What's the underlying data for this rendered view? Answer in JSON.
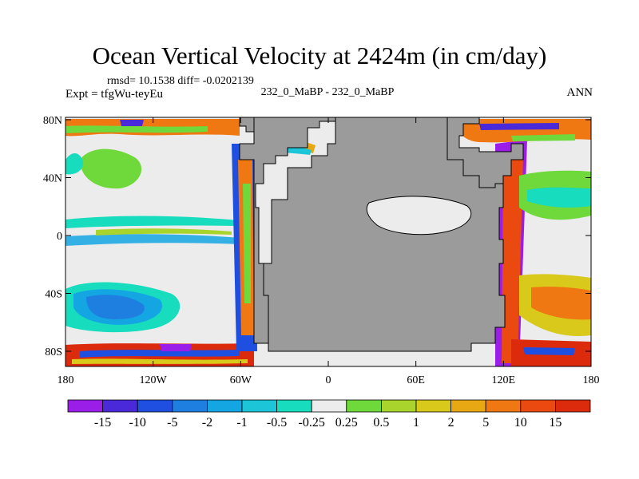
{
  "title": "Ocean Vertical Velocity at 2424m (in cm/day)",
  "stats": "rmsd= 10.1538  diff= -0.0202139",
  "center_label": "232_0_MaBP - 232_0_MaBP",
  "experiment": "Expt = tfgWu-teyEu",
  "season": "ANN",
  "axes": {
    "lat_ticks": [
      "80N",
      "40N",
      "0",
      "40S",
      "80S"
    ],
    "lon_ticks": [
      "180",
      "120W",
      "60W",
      "0",
      "60E",
      "120E",
      "180"
    ]
  },
  "colorbar": {
    "labels": [
      "-15",
      "-10",
      "-5",
      "-2",
      "-1",
      "-0.5",
      "-0.25",
      "0.25",
      "0.5",
      "1",
      "2",
      "5",
      "10",
      "15"
    ],
    "colors": [
      "#9a1ee8",
      "#4a2ad8",
      "#1f4fe0",
      "#1f7fe0",
      "#14a6e3",
      "#1cc6d8",
      "#17dcbd",
      "#ededed",
      "#6fd83a",
      "#a8d42c",
      "#d8c91a",
      "#e8a814",
      "#f07812",
      "#ea4a10",
      "#dc2a0c"
    ]
  },
  "colors": {
    "land": "#9b9b9b",
    "neutral": "#ececec"
  }
}
